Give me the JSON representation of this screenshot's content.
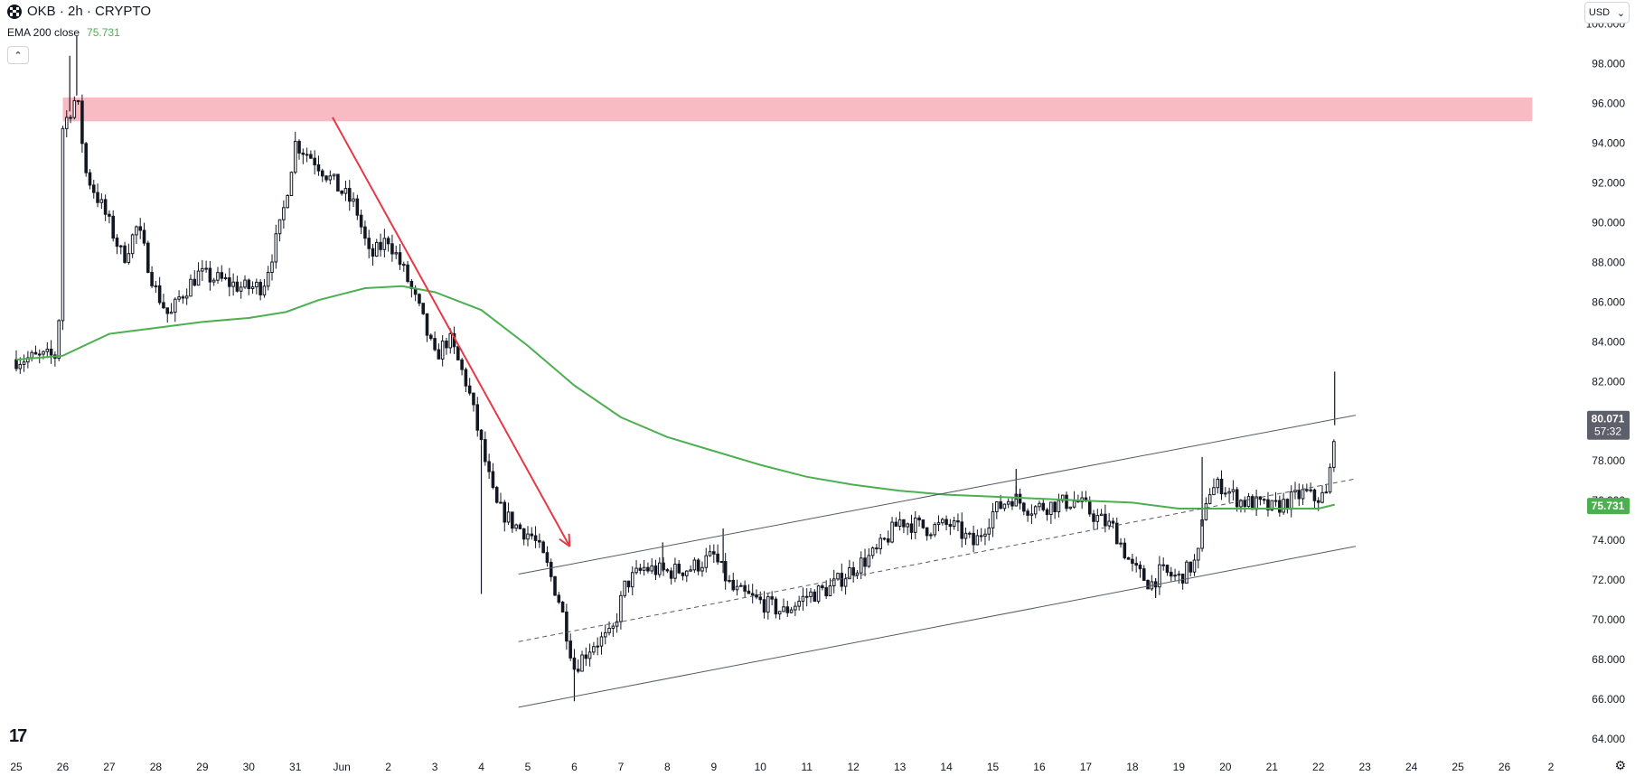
{
  "header": {
    "symbol": "OKB · 2h · CRYPTO",
    "indicator_label": "EMA 200 close",
    "indicator_value": "75.731",
    "collapse_icon": "chevron-up-icon"
  },
  "currency_select": {
    "value": "USD",
    "icon": "chevron-down-icon"
  },
  "colors": {
    "up_candle": "#131722",
    "down_candle": "#131722",
    "ema": "#4caf50",
    "resistance_zone": "#f8bbc3",
    "arrow": "#e53945",
    "channel": "#555a66",
    "price_tag_bg": "#5d606b",
    "ema_tag_bg": "#4caf50"
  },
  "price_tag": {
    "price": "80.071",
    "countdown": "57:32"
  },
  "ema_tag": {
    "value": "75.731"
  },
  "chart_data": {
    "type": "candlestick",
    "y_ticks": [
      "64.000",
      "66.000",
      "68.000",
      "70.000",
      "72.000",
      "74.000",
      "76.000",
      "78.000",
      "80.000",
      "82.000",
      "84.000",
      "86.000",
      "88.000",
      "90.000",
      "92.000",
      "94.000",
      "96.000",
      "98.000",
      "100.000"
    ],
    "ylim": [
      63.5,
      100.3
    ],
    "x_ticks": [
      "25",
      "26",
      "27",
      "28",
      "29",
      "30",
      "31",
      "Jun",
      "2",
      "3",
      "4",
      "5",
      "6",
      "7",
      "8",
      "9",
      "10",
      "11",
      "12",
      "13",
      "14",
      "15",
      "16",
      "17",
      "18",
      "19",
      "20",
      "21",
      "22",
      "23",
      "24",
      "25",
      "26",
      "2"
    ],
    "x_tick_days": [
      0,
      1,
      2,
      3,
      4,
      5,
      6,
      7,
      8,
      9,
      10,
      11,
      12,
      13,
      14,
      15,
      16,
      17,
      18,
      19,
      20,
      21,
      22,
      23,
      24,
      25,
      26,
      27,
      28,
      29,
      30,
      31,
      32,
      33
    ],
    "xlim": [
      -0.35,
      33.7
    ],
    "price_path": [
      [
        0.0,
        83.1
      ],
      [
        0.9,
        83.3
      ],
      [
        1.0,
        94.8
      ],
      [
        1.3,
        96.4
      ],
      [
        1.5,
        92.5
      ],
      [
        1.9,
        90.5
      ],
      [
        2.3,
        88.2
      ],
      [
        2.6,
        89.8
      ],
      [
        3.0,
        86.6
      ],
      [
        3.3,
        85.2
      ],
      [
        3.5,
        86.2
      ],
      [
        3.9,
        87.4
      ],
      [
        4.4,
        87.1
      ],
      [
        4.9,
        86.7
      ],
      [
        5.3,
        86.8
      ],
      [
        5.7,
        90.0
      ],
      [
        6.0,
        94.0
      ],
      [
        6.4,
        93.2
      ],
      [
        6.9,
        91.8
      ],
      [
        7.3,
        90.8
      ],
      [
        7.6,
        88.2
      ],
      [
        8.0,
        89.2
      ],
      [
        8.4,
        87.2
      ],
      [
        8.7,
        85.4
      ],
      [
        9.0,
        83.2
      ],
      [
        9.3,
        84.2
      ],
      [
        9.7,
        81.8
      ],
      [
        10.0,
        78.8
      ],
      [
        10.3,
        75.8
      ],
      [
        10.7,
        74.8
      ],
      [
        11.1,
        74.2
      ],
      [
        11.4,
        72.8
      ],
      [
        11.7,
        70.8
      ],
      [
        12.0,
        67.6
      ],
      [
        12.4,
        68.8
      ],
      [
        12.8,
        69.2
      ],
      [
        13.1,
        71.8
      ],
      [
        13.5,
        72.6
      ],
      [
        14.0,
        72.4
      ],
      [
        14.5,
        72.6
      ],
      [
        15.0,
        73.2
      ],
      [
        15.4,
        71.5
      ],
      [
        15.9,
        71.0
      ],
      [
        16.5,
        70.4
      ],
      [
        17.0,
        71.2
      ],
      [
        17.5,
        71.6
      ],
      [
        18.0,
        72.6
      ],
      [
        18.5,
        73.4
      ],
      [
        19.0,
        75.0
      ],
      [
        19.6,
        74.6
      ],
      [
        20.1,
        74.8
      ],
      [
        20.6,
        73.8
      ],
      [
        21.0,
        75.4
      ],
      [
        21.4,
        76.2
      ],
      [
        21.8,
        75.6
      ],
      [
        22.3,
        75.8
      ],
      [
        22.8,
        76.0
      ],
      [
        23.2,
        75.2
      ],
      [
        23.6,
        74.6
      ],
      [
        24.0,
        72.6
      ],
      [
        24.4,
        71.8
      ],
      [
        24.6,
        72.4
      ],
      [
        25.0,
        72.1
      ],
      [
        25.4,
        73.0
      ],
      [
        25.6,
        76.4
      ],
      [
        25.9,
        76.8
      ],
      [
        26.3,
        76.0
      ],
      [
        26.7,
        75.8
      ],
      [
        27.0,
        75.6
      ],
      [
        27.3,
        75.9
      ],
      [
        27.7,
        76.4
      ],
      [
        27.9,
        76.1
      ],
      [
        28.2,
        76.3
      ],
      [
        28.35,
        79.8
      ]
    ],
    "price_path_note_excluded": [],
    "spikes": [
      [
        1.3,
        99.4
      ],
      [
        1.15,
        98.4
      ],
      [
        10.0,
        71.3
      ],
      [
        12.0,
        65.9
      ],
      [
        28.35,
        82.5
      ],
      [
        25.5,
        78.2
      ],
      [
        13.9,
        73.9
      ],
      [
        15.2,
        74.6
      ],
      [
        21.5,
        77.6
      ],
      [
        24.5,
        71.1
      ]
    ],
    "ema200": [
      [
        0.0,
        83.1
      ],
      [
        1.0,
        83.3
      ],
      [
        2.0,
        84.4
      ],
      [
        3.0,
        84.7
      ],
      [
        4.0,
        85.0
      ],
      [
        5.0,
        85.2
      ],
      [
        5.8,
        85.5
      ],
      [
        6.5,
        86.1
      ],
      [
        7.5,
        86.7
      ],
      [
        8.3,
        86.8
      ],
      [
        9.0,
        86.5
      ],
      [
        10.0,
        85.6
      ],
      [
        11.0,
        83.8
      ],
      [
        12.0,
        81.8
      ],
      [
        13.0,
        80.2
      ],
      [
        14.0,
        79.2
      ],
      [
        15.0,
        78.5
      ],
      [
        16.0,
        77.8
      ],
      [
        17.0,
        77.2
      ],
      [
        18.0,
        76.8
      ],
      [
        19.0,
        76.5
      ],
      [
        20.0,
        76.3
      ],
      [
        21.0,
        76.2
      ],
      [
        22.0,
        76.1
      ],
      [
        23.0,
        76.0
      ],
      [
        24.0,
        75.9
      ],
      [
        25.0,
        75.6
      ],
      [
        26.0,
        75.6
      ],
      [
        27.0,
        75.6
      ],
      [
        28.0,
        75.6
      ],
      [
        28.35,
        75.8
      ]
    ],
    "resistance_zone": {
      "x": [
        1.0,
        32.6
      ],
      "y": [
        95.1,
        96.3
      ]
    },
    "down_arrow": {
      "from": [
        6.8,
        95.3
      ],
      "to": [
        11.9,
        73.7
      ]
    },
    "channel_upper": {
      "from": [
        10.8,
        72.3
      ],
      "to": [
        28.8,
        80.3
      ]
    },
    "channel_lower": {
      "from": [
        10.8,
        65.6
      ],
      "to": [
        28.8,
        73.7
      ]
    },
    "channel_mid": {
      "from": [
        10.8,
        68.9
      ],
      "to": [
        28.8,
        77.1
      ]
    }
  }
}
